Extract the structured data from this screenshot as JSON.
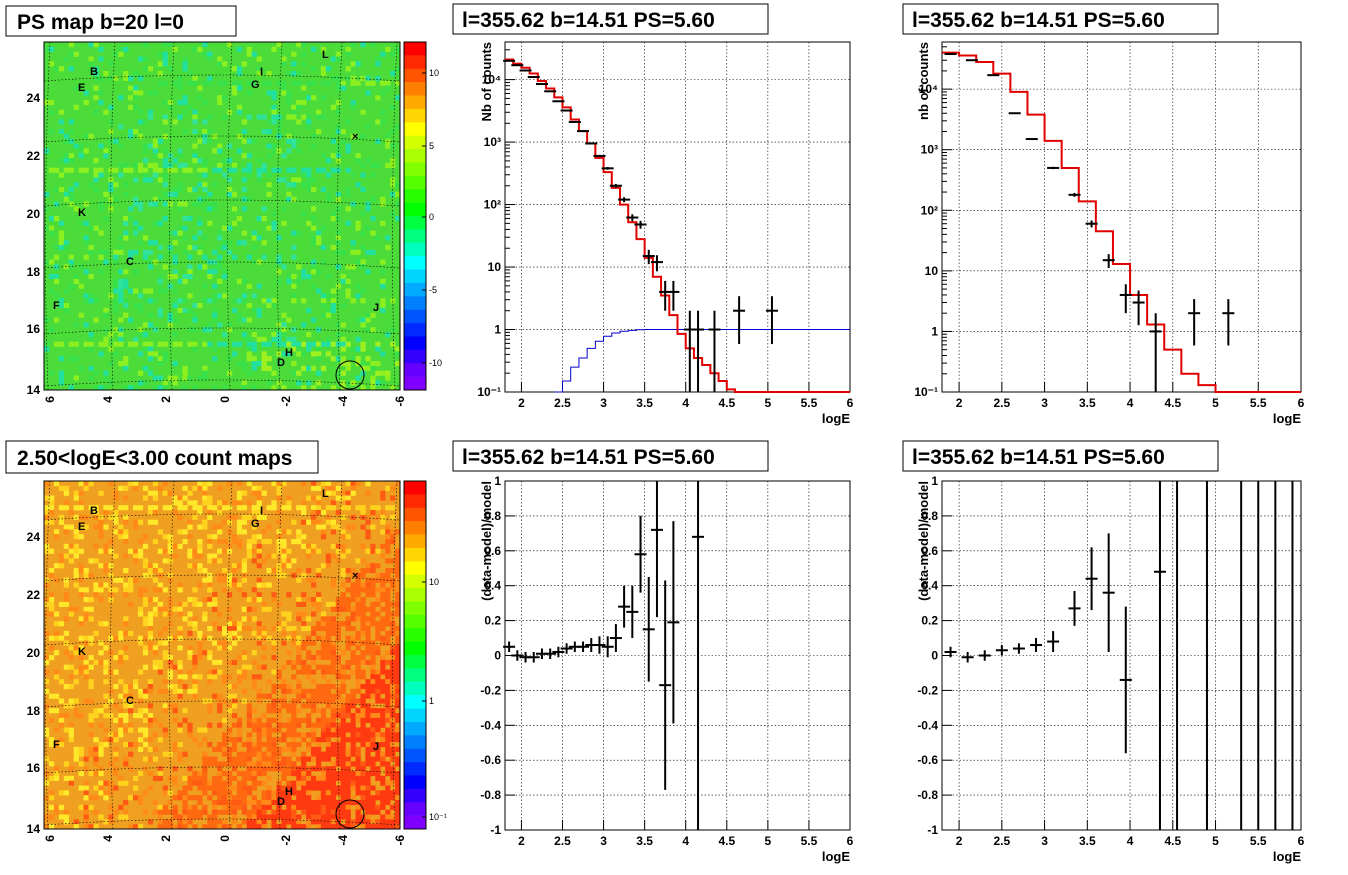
{
  "chart_data": [
    {
      "type": "heatmap",
      "title": "PS map b=20 l=0",
      "xticks": [
        "6",
        "4",
        "2",
        "0",
        "-2",
        "-4",
        "-6"
      ],
      "yticks": [
        "14",
        "16",
        "18",
        "20",
        "22",
        "24"
      ],
      "colorbar_ticks": [
        "10",
        "5",
        "0",
        "-5",
        "-10"
      ],
      "sources": [
        "B",
        "E",
        "G",
        "I",
        "L",
        "K",
        "C",
        "F",
        "J",
        "D",
        "H"
      ]
    },
    {
      "type": "line",
      "title": "l=355.62 b=14.51 PS=5.60",
      "xlabel": "logE",
      "ylabel": "Nb of counts",
      "yscale": "log",
      "xlim": [
        1.8,
        6
      ],
      "ylim": [
        0.1,
        40000
      ],
      "xticks": [
        "2",
        "2.5",
        "3",
        "3.5",
        "4",
        "4.5",
        "5",
        "5.5",
        "6"
      ],
      "yticks": [
        "10⁻¹",
        "1",
        "10",
        "10²",
        "10³",
        "10⁴"
      ],
      "data_points": [
        {
          "x": 1.85,
          "y": 20000
        },
        {
          "x": 1.95,
          "y": 17000
        },
        {
          "x": 2.05,
          "y": 14000
        },
        {
          "x": 2.15,
          "y": 11000
        },
        {
          "x": 2.25,
          "y": 8500
        },
        {
          "x": 2.35,
          "y": 6500
        },
        {
          "x": 2.45,
          "y": 4500
        },
        {
          "x": 2.55,
          "y": 3200
        },
        {
          "x": 2.65,
          "y": 2100
        },
        {
          "x": 2.75,
          "y": 1500
        },
        {
          "x": 2.85,
          "y": 950
        },
        {
          "x": 2.95,
          "y": 600
        },
        {
          "x": 3.05,
          "y": 380
        },
        {
          "x": 3.15,
          "y": 200
        },
        {
          "x": 3.25,
          "y": 120
        },
        {
          "x": 3.35,
          "y": 62
        },
        {
          "x": 3.45,
          "y": 48
        },
        {
          "x": 3.55,
          "y": 15
        },
        {
          "x": 3.65,
          "y": 12
        },
        {
          "x": 3.75,
          "y": 4
        },
        {
          "x": 3.85,
          "y": 4
        },
        {
          "x": 4.05,
          "y": 1
        },
        {
          "x": 4.15,
          "y": 1
        },
        {
          "x": 4.35,
          "y": 1
        },
        {
          "x": 4.65,
          "y": 2
        },
        {
          "x": 5.05,
          "y": 2
        }
      ],
      "model": [
        {
          "x": 1.8,
          "y": 21000
        },
        {
          "x": 1.9,
          "y": 18000
        },
        {
          "x": 2.0,
          "y": 15500
        },
        {
          "x": 2.1,
          "y": 12500
        },
        {
          "x": 2.2,
          "y": 9500
        },
        {
          "x": 2.3,
          "y": 7200
        },
        {
          "x": 2.4,
          "y": 5200
        },
        {
          "x": 2.5,
          "y": 3600
        },
        {
          "x": 2.6,
          "y": 2300
        },
        {
          "x": 2.7,
          "y": 1500
        },
        {
          "x": 2.8,
          "y": 950
        },
        {
          "x": 2.9,
          "y": 560
        },
        {
          "x": 3.0,
          "y": 330
        },
        {
          "x": 3.1,
          "y": 185
        },
        {
          "x": 3.2,
          "y": 100
        },
        {
          "x": 3.3,
          "y": 52
        },
        {
          "x": 3.4,
          "y": 28
        },
        {
          "x": 3.5,
          "y": 14
        },
        {
          "x": 3.6,
          "y": 7
        },
        {
          "x": 3.7,
          "y": 3.5
        },
        {
          "x": 3.8,
          "y": 1.7
        },
        {
          "x": 3.9,
          "y": 0.85
        },
        {
          "x": 4.0,
          "y": 0.5
        },
        {
          "x": 4.1,
          "y": 0.35
        },
        {
          "x": 4.2,
          "y": 0.27
        },
        {
          "x": 4.3,
          "y": 0.2
        },
        {
          "x": 4.4,
          "y": 0.15
        },
        {
          "x": 4.5,
          "y": 0.11
        },
        {
          "x": 4.6,
          "y": 0.1
        }
      ],
      "efficiency": [
        {
          "x": 2.4,
          "y": 0.1
        },
        {
          "x": 2.5,
          "y": 0.15
        },
        {
          "x": 2.6,
          "y": 0.25
        },
        {
          "x": 2.7,
          "y": 0.35
        },
        {
          "x": 2.8,
          "y": 0.5
        },
        {
          "x": 2.9,
          "y": 0.65
        },
        {
          "x": 3.0,
          "y": 0.78
        },
        {
          "x": 3.1,
          "y": 0.88
        },
        {
          "x": 3.2,
          "y": 0.94
        },
        {
          "x": 3.3,
          "y": 0.97
        },
        {
          "x": 3.4,
          "y": 0.99
        },
        {
          "x": 3.5,
          "y": 1
        },
        {
          "x": 6.0,
          "y": 1
        }
      ]
    },
    {
      "type": "line",
      "title": "l=355.62 b=14.51 PS=5.60",
      "xlabel": "logE",
      "ylabel": "nb of counts",
      "yscale": "log",
      "xlim": [
        1.8,
        6
      ],
      "ylim": [
        0.1,
        60000
      ],
      "xticks": [
        "2",
        "2.5",
        "3",
        "3.5",
        "4",
        "4.5",
        "5",
        "5.5",
        "6"
      ],
      "yticks": [
        "10⁻¹",
        "1",
        "10",
        "10²",
        "10³",
        "10⁴"
      ],
      "data_points": [
        {
          "x": 1.9,
          "y": 38000
        },
        {
          "x": 2.15,
          "y": 30000
        },
        {
          "x": 2.4,
          "y": 17000
        },
        {
          "x": 2.65,
          "y": 4000
        },
        {
          "x": 2.85,
          "y": 1500
        },
        {
          "x": 3.1,
          "y": 500
        },
        {
          "x": 3.35,
          "y": 180
        },
        {
          "x": 3.55,
          "y": 60
        },
        {
          "x": 3.75,
          "y": 15
        },
        {
          "x": 3.95,
          "y": 4
        },
        {
          "x": 4.1,
          "y": 3
        },
        {
          "x": 4.3,
          "y": 1
        },
        {
          "x": 4.75,
          "y": 2
        },
        {
          "x": 5.15,
          "y": 2
        }
      ],
      "model": [
        {
          "x": 1.8,
          "y": 40000
        },
        {
          "x": 2.0,
          "y": 36000
        },
        {
          "x": 2.2,
          "y": 28000
        },
        {
          "x": 2.4,
          "y": 18000
        },
        {
          "x": 2.6,
          "y": 9000
        },
        {
          "x": 2.8,
          "y": 3800
        },
        {
          "x": 3.0,
          "y": 1400
        },
        {
          "x": 3.2,
          "y": 500
        },
        {
          "x": 3.4,
          "y": 140
        },
        {
          "x": 3.6,
          "y": 45
        },
        {
          "x": 3.8,
          "y": 13
        },
        {
          "x": 4.0,
          "y": 4
        },
        {
          "x": 4.2,
          "y": 1.3
        },
        {
          "x": 4.4,
          "y": 0.5
        },
        {
          "x": 4.6,
          "y": 0.2
        },
        {
          "x": 4.8,
          "y": 0.13
        },
        {
          "x": 5.0,
          "y": 0.1
        }
      ]
    },
    {
      "type": "heatmap",
      "title": "2.50<logE<3.00 count maps",
      "xticks": [
        "6",
        "4",
        "2",
        "0",
        "-2",
        "-4",
        "-6"
      ],
      "yticks": [
        "14",
        "16",
        "18",
        "20",
        "22",
        "24"
      ],
      "colorbar_ticks": [
        "10",
        "1",
        "10⁻¹"
      ],
      "sources": [
        "B",
        "E",
        "G",
        "I",
        "L",
        "K",
        "C",
        "F",
        "J",
        "D",
        "H"
      ]
    },
    {
      "type": "scatter",
      "title": "l=355.62 b=14.51 PS=5.60",
      "xlabel": "logE",
      "ylabel": "(data-model)/model",
      "xlim": [
        1.8,
        6
      ],
      "ylim": [
        -1,
        1
      ],
      "xticks": [
        "2",
        "2.5",
        "3",
        "3.5",
        "4",
        "4.5",
        "5",
        "5.5",
        "6"
      ],
      "yticks": [
        "-1",
        "-0.8",
        "-0.6",
        "-0.4",
        "-0.2",
        "0",
        "0.2",
        "0.4",
        "0.6",
        "0.8",
        "1"
      ],
      "points": [
        {
          "x": 1.85,
          "y": 0.05,
          "e": 0.03
        },
        {
          "x": 1.95,
          "y": 0.0,
          "e": 0.03
        },
        {
          "x": 2.05,
          "y": -0.01,
          "e": 0.03
        },
        {
          "x": 2.15,
          "y": -0.01,
          "e": 0.03
        },
        {
          "x": 2.25,
          "y": 0.01,
          "e": 0.03
        },
        {
          "x": 2.35,
          "y": 0.01,
          "e": 0.03
        },
        {
          "x": 2.45,
          "y": 0.02,
          "e": 0.03
        },
        {
          "x": 2.55,
          "y": 0.04,
          "e": 0.03
        },
        {
          "x": 2.65,
          "y": 0.05,
          "e": 0.03
        },
        {
          "x": 2.75,
          "y": 0.05,
          "e": 0.03
        },
        {
          "x": 2.85,
          "y": 0.06,
          "e": 0.04
        },
        {
          "x": 2.95,
          "y": 0.06,
          "e": 0.05
        },
        {
          "x": 3.05,
          "y": 0.05,
          "e": 0.06
        },
        {
          "x": 3.15,
          "y": 0.1,
          "e": 0.08
        },
        {
          "x": 3.25,
          "y": 0.28,
          "e": 0.12
        },
        {
          "x": 3.35,
          "y": 0.25,
          "e": 0.15
        },
        {
          "x": 3.45,
          "y": 0.58,
          "e": 0.22
        },
        {
          "x": 3.55,
          "y": 0.15,
          "e": 0.3
        },
        {
          "x": 3.65,
          "y": 0.72,
          "e": 0.5
        },
        {
          "x": 3.75,
          "y": -0.17,
          "e": 0.6
        },
        {
          "x": 3.85,
          "y": 0.19,
          "e": 0.58
        },
        {
          "x": 4.15,
          "y": 0.68,
          "e": 1.9
        }
      ]
    },
    {
      "type": "scatter",
      "title": "l=355.62 b=14.51 PS=5.60",
      "xlabel": "logE",
      "ylabel": "(data-model)/model",
      "xlim": [
        1.8,
        6
      ],
      "ylim": [
        -1,
        1
      ],
      "xticks": [
        "2",
        "2.5",
        "3",
        "3.5",
        "4",
        "4.5",
        "5",
        "5.5",
        "6"
      ],
      "yticks": [
        "-1",
        "-0.8",
        "-0.6",
        "-0.4",
        "-0.2",
        "0",
        "0.2",
        "0.4",
        "0.6",
        "0.8",
        "1"
      ],
      "points": [
        {
          "x": 1.9,
          "y": 0.02,
          "e": 0.03
        },
        {
          "x": 2.1,
          "y": -0.01,
          "e": 0.03
        },
        {
          "x": 2.3,
          "y": 0.0,
          "e": 0.03
        },
        {
          "x": 2.5,
          "y": 0.03,
          "e": 0.03
        },
        {
          "x": 2.7,
          "y": 0.04,
          "e": 0.03
        },
        {
          "x": 2.9,
          "y": 0.06,
          "e": 0.04
        },
        {
          "x": 3.1,
          "y": 0.08,
          "e": 0.06
        },
        {
          "x": 3.35,
          "y": 0.27,
          "e": 0.1
        },
        {
          "x": 3.55,
          "y": 0.44,
          "e": 0.18
        },
        {
          "x": 3.75,
          "y": 0.36,
          "e": 0.34
        },
        {
          "x": 3.95,
          "y": -0.14,
          "e": 0.42
        },
        {
          "x": 4.35,
          "y": 0.48,
          "e": 1.6
        },
        {
          "x": 4.55,
          "y": 1.0,
          "e": 2.0
        },
        {
          "x": 4.9,
          "y": 1.0,
          "e": 2.0
        },
        {
          "x": 5.3,
          "y": 1.0,
          "e": 2.0
        },
        {
          "x": 5.5,
          "y": 1.0,
          "e": 2.0
        },
        {
          "x": 5.7,
          "y": 1.0,
          "e": 2.0
        },
        {
          "x": 5.9,
          "y": 1.0,
          "e": 2.0
        }
      ]
    }
  ]
}
